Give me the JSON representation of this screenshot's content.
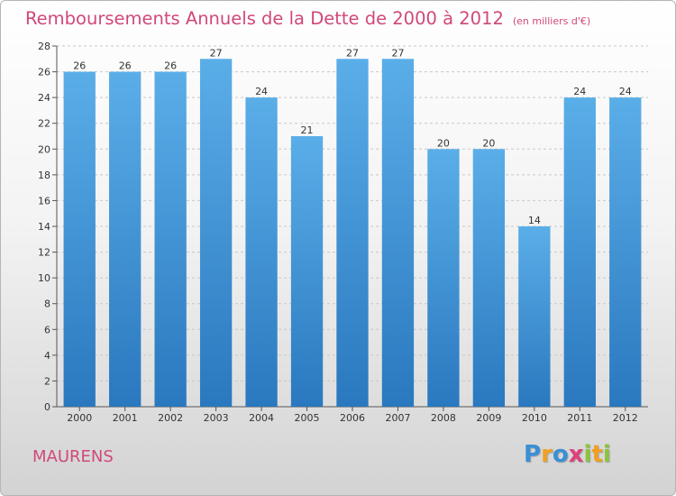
{
  "title": "Remboursements Annuels de la Dette de 2000 à 2012",
  "unit_label": "(en milliers d'€)",
  "commune": "MAURENS",
  "logo": {
    "text": "Proxiti",
    "letters": [
      {
        "ch": "P",
        "color": "#3a8fd6"
      },
      {
        "ch": "r",
        "color": "#f0a020"
      },
      {
        "ch": "o",
        "color": "#3a8fd6"
      },
      {
        "ch": "x",
        "color": "#e0407a"
      },
      {
        "ch": "i",
        "color": "#8cc43c"
      },
      {
        "ch": "t",
        "color": "#f0a020"
      },
      {
        "ch": "i",
        "color": "#8cc43c"
      }
    ]
  },
  "colors": {
    "bar_top": "#5aaee8",
    "bar_bottom": "#2a78bf",
    "title": "#d0487a",
    "grid": "#c8c8c8"
  },
  "chart_data": {
    "type": "bar",
    "title": "Remboursements Annuels de la Dette de 2000 à 2012",
    "categories": [
      "2000",
      "2001",
      "2002",
      "2003",
      "2004",
      "2005",
      "2006",
      "2007",
      "2008",
      "2009",
      "2010",
      "2011",
      "2012"
    ],
    "values": [
      26,
      26,
      26,
      27,
      24,
      21,
      27,
      27,
      20,
      20,
      14,
      24,
      24
    ],
    "ylim": [
      0,
      28
    ],
    "yticks": [
      0,
      2,
      4,
      6,
      8,
      10,
      12,
      14,
      16,
      18,
      20,
      22,
      24,
      26,
      28
    ],
    "grid": true,
    "legend": "none"
  }
}
